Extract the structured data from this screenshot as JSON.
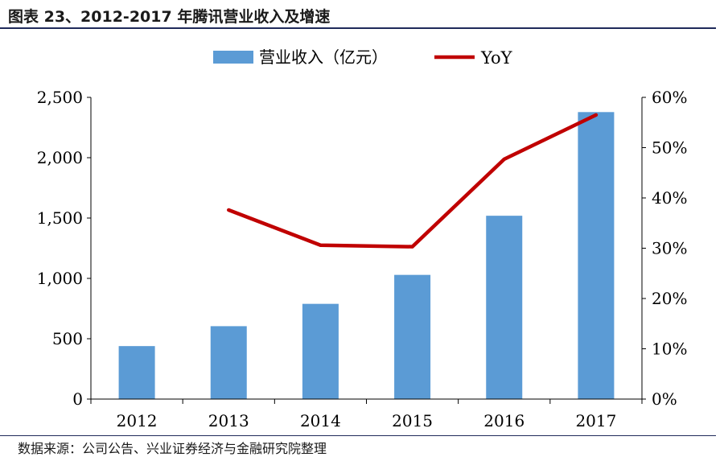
{
  "figure": {
    "title": "图表 23、2012-2017 年腾讯营业收入及增速",
    "source": "数据来源：公司公告、兴业证券经济与金融研究院整理"
  },
  "chart_data": {
    "type": "bar",
    "categories": [
      "2012",
      "2013",
      "2014",
      "2015",
      "2016",
      "2017"
    ],
    "series": [
      {
        "name": "营业收入（亿元）",
        "type": "bar",
        "axis": "left",
        "color": "#5b9bd5",
        "values": [
          439,
          604,
          789,
          1029,
          1519,
          2378
        ]
      },
      {
        "name": "YoY",
        "type": "line",
        "axis": "right",
        "color": "#c00000",
        "values": [
          null,
          37.6,
          30.6,
          30.3,
          47.7,
          56.5
        ]
      }
    ],
    "y_left": {
      "ylim": [
        0,
        2500
      ],
      "ticks": [
        0,
        500,
        1000,
        1500,
        2000,
        2500
      ],
      "tick_labels": [
        "0",
        "500",
        "1,000",
        "1,500",
        "2,000",
        "2,500"
      ]
    },
    "y_right": {
      "ylim": [
        0,
        60
      ],
      "ticks": [
        0,
        10,
        20,
        30,
        40,
        50,
        60
      ],
      "tick_labels": [
        "0%",
        "10%",
        "20%",
        "30%",
        "40%",
        "50%",
        "60%"
      ]
    },
    "legend_position": "top-center",
    "grid": false
  }
}
